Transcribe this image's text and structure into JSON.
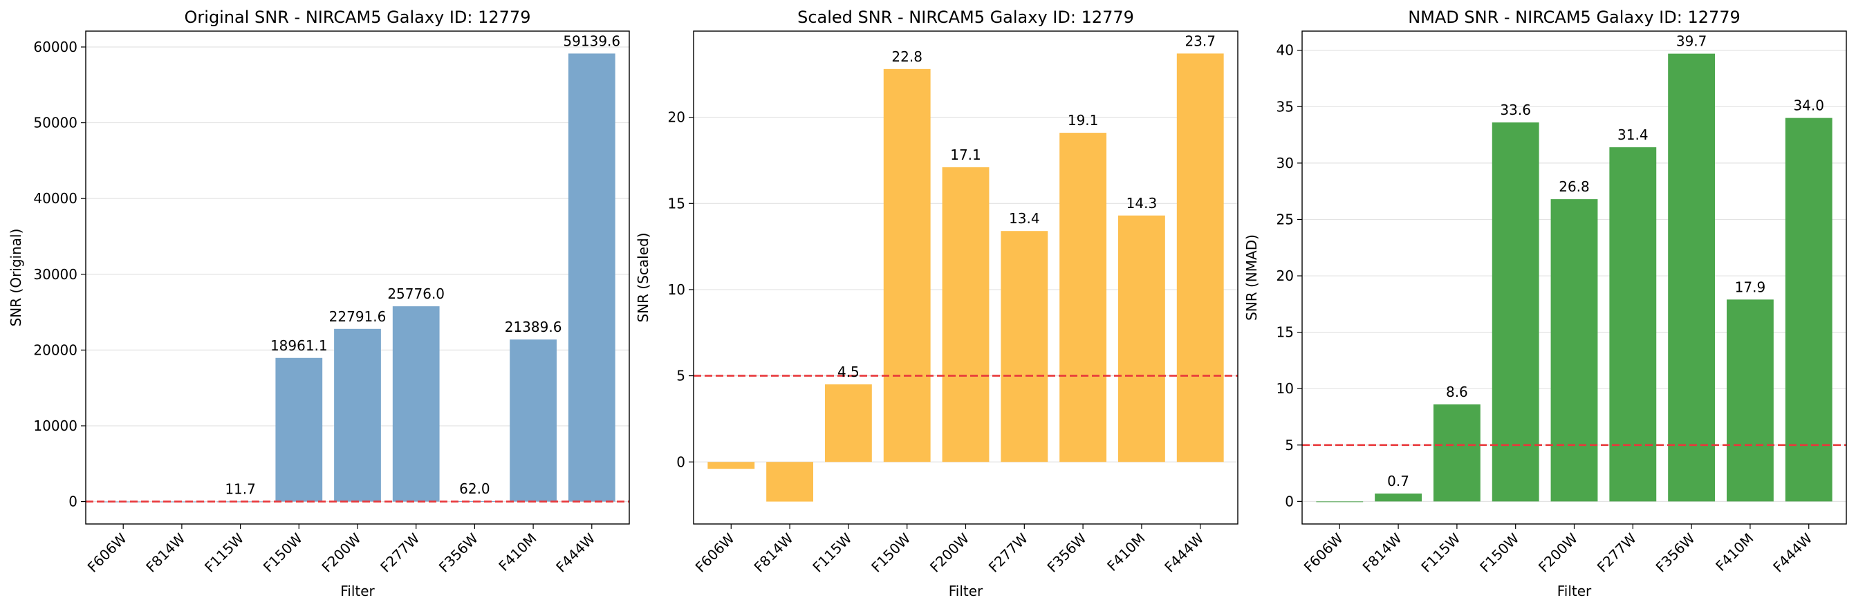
{
  "chart_data": [
    {
      "type": "bar",
      "title": "Original SNR - NIRCAM5 Galaxy ID: 12779",
      "xlabel": "Filter",
      "ylabel": "SNR (Original)",
      "categories": [
        "F606W",
        "F814W",
        "F115W",
        "F150W",
        "F200W",
        "F277W",
        "F356W",
        "F410M",
        "F444W"
      ],
      "values": [
        0,
        0,
        11.7,
        18961.1,
        22791.6,
        25776.0,
        62.0,
        21389.6,
        59139.6
      ],
      "value_labels": [
        "",
        "",
        "11.7",
        "18961.1",
        "22791.6",
        "25776.0",
        "62.0",
        "21389.6",
        "59139.6"
      ],
      "ylim": [
        -2957,
        62097
      ],
      "yticks": [
        0,
        10000,
        20000,
        30000,
        40000,
        50000,
        60000
      ],
      "ytick_labels": [
        "0",
        "10000",
        "20000",
        "30000",
        "40000",
        "50000",
        "60000"
      ],
      "threshold": 0,
      "color": "#7ba7cc",
      "threshold_color": "#e8373a",
      "grid": "y"
    },
    {
      "type": "bar",
      "title": "Scaled SNR - NIRCAM5 Galaxy ID: 12779",
      "xlabel": "Filter",
      "ylabel": "SNR (Scaled)",
      "categories": [
        "F606W",
        "F814W",
        "F115W",
        "F150W",
        "F200W",
        "F277W",
        "F356W",
        "F410M",
        "F444W"
      ],
      "values": [
        -0.4,
        -2.3,
        4.5,
        22.8,
        17.1,
        13.4,
        19.1,
        14.3,
        23.7
      ],
      "value_labels": [
        "",
        "",
        "4.5",
        "22.8",
        "17.1",
        "13.4",
        "19.1",
        "14.3",
        "23.7"
      ],
      "ylim": [
        -3.6,
        25.0
      ],
      "yticks": [
        0,
        5,
        10,
        15,
        20
      ],
      "ytick_labels": [
        "0",
        "5",
        "10",
        "15",
        "20"
      ],
      "threshold": 5,
      "color": "#fdbf4f",
      "threshold_color": "#e8373a",
      "grid": "y"
    },
    {
      "type": "bar",
      "title": "NMAD SNR - NIRCAM5 Galaxy ID: 12779",
      "xlabel": "Filter",
      "ylabel": "SNR (NMAD)",
      "categories": [
        "F606W",
        "F814W",
        "F115W",
        "F150W",
        "F200W",
        "F277W",
        "F356W",
        "F410M",
        "F444W"
      ],
      "values": [
        0.0,
        0.7,
        8.6,
        33.6,
        26.8,
        31.4,
        39.7,
        17.9,
        34.0
      ],
      "value_labels": [
        "",
        "0.7",
        "8.6",
        "33.6",
        "26.8",
        "31.4",
        "39.7",
        "17.9",
        "34.0"
      ],
      "ylim": [
        -2.0,
        41.7
      ],
      "yticks": [
        0,
        5,
        10,
        15,
        20,
        25,
        30,
        35,
        40
      ],
      "ytick_labels": [
        "0",
        "5",
        "10",
        "15",
        "20",
        "25",
        "30",
        "35",
        "40"
      ],
      "threshold": 5,
      "color": "#4ca64c",
      "threshold_color": "#e8373a",
      "grid": "y"
    }
  ]
}
